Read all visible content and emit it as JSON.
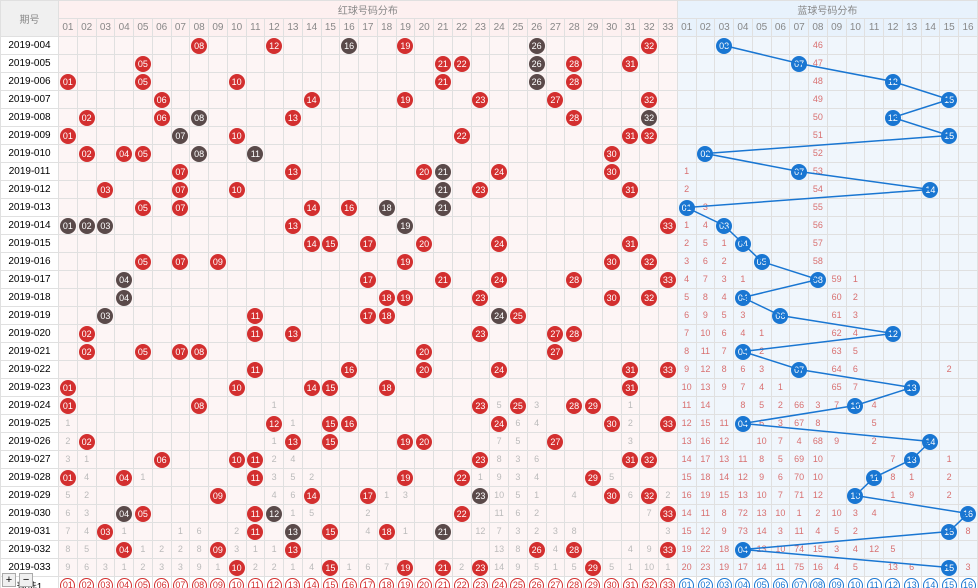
{
  "title_period": "期号",
  "title_red": "红球号码分布",
  "title_blue": "蓝球号码分布",
  "predict_label": "预选1",
  "red_max": 33,
  "blue_max": 16,
  "colors": {
    "red_ball": "#d32f2f",
    "dark_ball": "#5a4a4a",
    "blue_ball": "#1976d2",
    "blue_line": "#1976d2",
    "red_zone_bg": "#fdf5f5",
    "blue_zone_bg": "#f0f6fc",
    "grid": "#e0e0e0",
    "miss_text": "#bbb",
    "blue_miss_text": "#d87070"
  },
  "rows": [
    {
      "period": "2019-004",
      "red": [
        8,
        12,
        16,
        19,
        26,
        32
      ],
      "dark": [
        16,
        26
      ],
      "blue": 3,
      "blue_miss": {
        "8": 46
      }
    },
    {
      "period": "2019-005",
      "red": [
        5,
        21,
        22,
        26,
        28,
        31
      ],
      "dark": [
        26
      ],
      "blue": 7,
      "blue_miss": {
        "8": 47
      }
    },
    {
      "period": "2019-006",
      "red": [
        1,
        5,
        10,
        21,
        26,
        28
      ],
      "dark": [
        26
      ],
      "blue": 12,
      "blue_miss": {
        "8": 48
      }
    },
    {
      "period": "2019-007",
      "red": [
        6,
        14,
        19,
        23,
        27,
        32
      ],
      "dark": [],
      "blue": 15,
      "blue_miss": {
        "8": 49
      }
    },
    {
      "period": "2019-008",
      "red": [
        2,
        6,
        8,
        13,
        28,
        32
      ],
      "dark": [
        8,
        32
      ],
      "blue": 12,
      "blue_miss": {
        "8": 50
      }
    },
    {
      "period": "2019-009",
      "red": [
        1,
        7,
        10,
        22,
        31,
        32
      ],
      "dark": [
        7
      ],
      "blue": 15,
      "blue_miss": {
        "8": 51
      }
    },
    {
      "period": "2019-010",
      "red": [
        2,
        4,
        5,
        8,
        11,
        30
      ],
      "dark": [
        8,
        11
      ],
      "blue": 2,
      "blue_miss": {
        "8": 52
      }
    },
    {
      "period": "2019-011",
      "red": [
        7,
        13,
        20,
        21,
        24,
        30
      ],
      "dark": [
        21
      ],
      "blue": 7,
      "blue_miss": {
        "1": 1,
        "8": 53
      }
    },
    {
      "period": "2019-012",
      "red": [
        3,
        7,
        10,
        21,
        23,
        31
      ],
      "dark": [
        21
      ],
      "blue": 14,
      "blue_miss": {
        "1": 2,
        "8": 54
      }
    },
    {
      "period": "2019-013",
      "red": [
        5,
        7,
        14,
        16,
        18,
        21
      ],
      "dark": [
        18,
        21
      ],
      "blue": 1,
      "blue_miss": {
        "2": 3,
        "8": 55
      }
    },
    {
      "period": "2019-014",
      "red": [
        1,
        2,
        3,
        13,
        19,
        33
      ],
      "dark": [
        1,
        2,
        3,
        19
      ],
      "blue": 3,
      "blue_miss": {
        "1": 1,
        "2": 4,
        "8": 56
      }
    },
    {
      "period": "2019-015",
      "red": [
        14,
        15,
        17,
        20,
        24,
        31
      ],
      "dark": [],
      "blue": 4,
      "blue_miss": {
        "1": 2,
        "2": 5,
        "3": 1,
        "8": 57
      }
    },
    {
      "period": "2019-016",
      "red": [
        5,
        7,
        9,
        19,
        30,
        32
      ],
      "dark": [],
      "blue": 5,
      "blue_miss": {
        "1": 3,
        "2": 6,
        "3": 2,
        "8": 58
      }
    },
    {
      "period": "2019-017",
      "red": [
        4,
        17,
        21,
        24,
        28,
        33
      ],
      "dark": [
        4
      ],
      "blue": 8,
      "blue_miss": {
        "1": 4,
        "2": 7,
        "3": 3,
        "4": 1,
        "9": 59,
        "10": 1
      }
    },
    {
      "period": "2019-018",
      "red": [
        4,
        18,
        19,
        23,
        30,
        32
      ],
      "dark": [
        4
      ],
      "blue": 4,
      "blue_miss": {
        "1": 5,
        "2": 8,
        "3": 4,
        "9": 60,
        "10": 2
      }
    },
    {
      "period": "2019-019",
      "red": [
        3,
        11,
        17,
        18,
        24,
        25
      ],
      "dark": [
        3,
        24
      ],
      "blue": 6,
      "blue_miss": {
        "1": 6,
        "2": 9,
        "3": 5,
        "4": 3,
        "9": 61,
        "10": 3
      }
    },
    {
      "period": "2019-020",
      "red": [
        2,
        11,
        13,
        23,
        27,
        28
      ],
      "dark": [],
      "blue": 12,
      "blue_miss": {
        "1": 7,
        "2": 10,
        "3": 6,
        "4": 4,
        "5": 1,
        "9": 62,
        "10": 4
      }
    },
    {
      "period": "2019-021",
      "red": [
        2,
        5,
        7,
        8,
        20,
        27
      ],
      "dark": [],
      "blue": 4,
      "blue_miss": {
        "1": 8,
        "2": 11,
        "3": 7,
        "5": 2,
        "9": 63,
        "10": 5
      }
    },
    {
      "period": "2019-022",
      "red": [
        11,
        16,
        20,
        24,
        31,
        33
      ],
      "dark": [],
      "blue": 7,
      "blue_miss": {
        "1": 9,
        "2": 12,
        "3": 8,
        "4": 6,
        "5": 3,
        "9": 64,
        "10": 6,
        "15": 2
      }
    },
    {
      "period": "2019-023",
      "red": [
        1,
        10,
        14,
        15,
        18,
        31
      ],
      "dark": [],
      "blue": 13,
      "blue_miss": {
        "1": 10,
        "2": 13,
        "3": 9,
        "4": 7,
        "5": 4,
        "6": 1,
        "9": 65,
        "10": 7
      }
    },
    {
      "period": "2019-024",
      "red": [
        1,
        8,
        23,
        25,
        28,
        29
      ],
      "dark": [],
      "blue": 10,
      "blue_miss": {
        "1": 11,
        "2": 14,
        "4": 8,
        "5": 5,
        "6": 2,
        "7": 66,
        "8": 3,
        "9": 7,
        "11": 4
      },
      "red_miss": {
        "12": 1,
        "24": 5,
        "26": 3,
        "31": 1
      }
    },
    {
      "period": "2019-025",
      "red": [
        12,
        15,
        16,
        24,
        30,
        33
      ],
      "dark": [],
      "blue": 4,
      "blue_miss": {
        "1": 12,
        "2": 15,
        "3": 11,
        "5": 6,
        "6": 3,
        "7": 67,
        "8": 8,
        "11": 5
      },
      "red_miss": {
        "1": 1,
        "13": 1,
        "25": 6,
        "26": 4,
        "31": 2
      }
    },
    {
      "period": "2019-026",
      "red": [
        2,
        13,
        15,
        19,
        20,
        27
      ],
      "dark": [],
      "blue": 14,
      "blue_miss": {
        "1": 13,
        "2": 16,
        "3": 12,
        "5": 10,
        "6": 7,
        "7": 4,
        "8": 68,
        "9": 9,
        "11": 2
      },
      "red_miss": {
        "1": 2,
        "12": 1,
        "24": 7,
        "25": 5,
        "31": 3
      }
    },
    {
      "period": "2019-027",
      "red": [
        6,
        10,
        11,
        23,
        31,
        32
      ],
      "dark": [],
      "blue": 13,
      "blue_miss": {
        "1": 14,
        "2": 17,
        "3": 13,
        "4": 11,
        "5": 8,
        "6": 5,
        "7": 69,
        "8": 10,
        "12": 7,
        "15": 1
      },
      "red_miss": {
        "1": 3,
        "2": 1,
        "12": 2,
        "13": 4,
        "24": 8,
        "25": 3,
        "26": 6,
        "32": 4
      }
    },
    {
      "period": "2019-028",
      "red": [
        1,
        4,
        11,
        19,
        22,
        29
      ],
      "dark": [],
      "blue": 11,
      "blue_miss": {
        "1": 15,
        "2": 18,
        "3": 14,
        "4": 12,
        "5": 9,
        "6": 6,
        "7": 70,
        "8": 10,
        "12": 8,
        "13": 1,
        "15": 2
      },
      "red_miss": {
        "2": 4,
        "5": 1,
        "12": 3,
        "13": 5,
        "14": 2,
        "23": 1,
        "24": 9,
        "25": 3,
        "26": 4,
        "30": 5
      }
    },
    {
      "period": "2019-029",
      "red": [
        9,
        14,
        17,
        23,
        30,
        32
      ],
      "dark": [
        23
      ],
      "blue": 10,
      "blue_miss": {
        "1": 16,
        "2": 19,
        "3": 15,
        "4": 13,
        "5": 10,
        "6": 7,
        "7": 71,
        "8": 12,
        "12": 1,
        "13": 9,
        "15": 2
      },
      "red_miss": {
        "1": 5,
        "2": 2,
        "12": 4,
        "13": 6,
        "18": 1,
        "19": 3,
        "24": 10,
        "25": 5,
        "26": 1,
        "28": 4,
        "31": 6,
        "33": 2
      }
    },
    {
      "period": "2019-030",
      "red": [
        4,
        5,
        11,
        12,
        22,
        33
      ],
      "dark": [
        4,
        12
      ],
      "blue": 16,
      "blue_miss": {
        "1": 14,
        "2": 11,
        "3": 8,
        "4": 72,
        "5": 13,
        "6": 10,
        "7": 1,
        "8": 2,
        "9": 10,
        "10": 3,
        "11": 4
      },
      "red_miss": {
        "1": 6,
        "2": 3,
        "13": 1,
        "14": 5,
        "17": 2,
        "24": 11,
        "25": 6,
        "26": 2,
        "32": 7
      }
    },
    {
      "period": "2019-031",
      "red": [
        3,
        11,
        13,
        15,
        18,
        21
      ],
      "dark": [
        13,
        21
      ],
      "blue": 15,
      "blue_miss": {
        "1": 15,
        "2": 12,
        "3": 9,
        "4": 73,
        "5": 14,
        "6": 3,
        "7": 11,
        "8": 4,
        "9": 5,
        "10": 2,
        "16": 8
      },
      "red_miss": {
        "1": 7,
        "2": 4,
        "4": 1,
        "7": 1,
        "8": 6,
        "10": 2,
        "17": 4,
        "19": 1,
        "23": 12,
        "24": 7,
        "25": 3,
        "26": 2,
        "27": 3,
        "28": 8,
        "33": 3
      }
    },
    {
      "period": "2019-032",
      "red": [
        4,
        9,
        13,
        26,
        28,
        33
      ],
      "dark": [],
      "blue": 4,
      "blue_miss": {
        "1": 19,
        "2": 22,
        "3": 18,
        "5": 13,
        "6": 10,
        "7": 74,
        "8": 15,
        "9": 3,
        "10": 4,
        "11": 12,
        "12": 5
      },
      "red_miss": {
        "1": 8,
        "2": 5,
        "5": 1,
        "6": 2,
        "7": 2,
        "8": 8,
        "10": 3,
        "11": 1,
        "12": 1,
        "24": 13,
        "25": 8,
        "27": 4,
        "31": 4,
        "32": 9
      }
    },
    {
      "period": "2019-033",
      "red": [
        10,
        15,
        19,
        21,
        23,
        29
      ],
      "dark": [],
      "blue": 15,
      "blue_miss": {
        "1": 20,
        "2": 23,
        "3": 19,
        "4": 17,
        "5": 14,
        "6": 11,
        "7": 75,
        "8": 16,
        "9": 4,
        "10": 5,
        "12": 13,
        "13": 6,
        "16": 3
      },
      "red_miss": {
        "1": 9,
        "2": 6,
        "3": 3,
        "4": 1,
        "5": 2,
        "6": 3,
        "7": 3,
        "8": 9,
        "9": 1,
        "11": 2,
        "12": 2,
        "13": 1,
        "14": 4,
        "16": 1,
        "17": 6,
        "18": 7,
        "22": 2,
        "24": 14,
        "25": 9,
        "26": 5,
        "27": 1,
        "28": 5,
        "30": 5,
        "31": 1,
        "32": 10,
        "33": 1
      }
    }
  ],
  "blue_path": [
    3,
    7,
    12,
    15,
    12,
    15,
    2,
    7,
    14,
    1,
    3,
    4,
    5,
    8,
    4,
    6,
    12,
    4,
    7,
    13,
    10,
    4,
    14,
    13,
    11,
    10,
    16,
    15,
    4,
    15
  ]
}
